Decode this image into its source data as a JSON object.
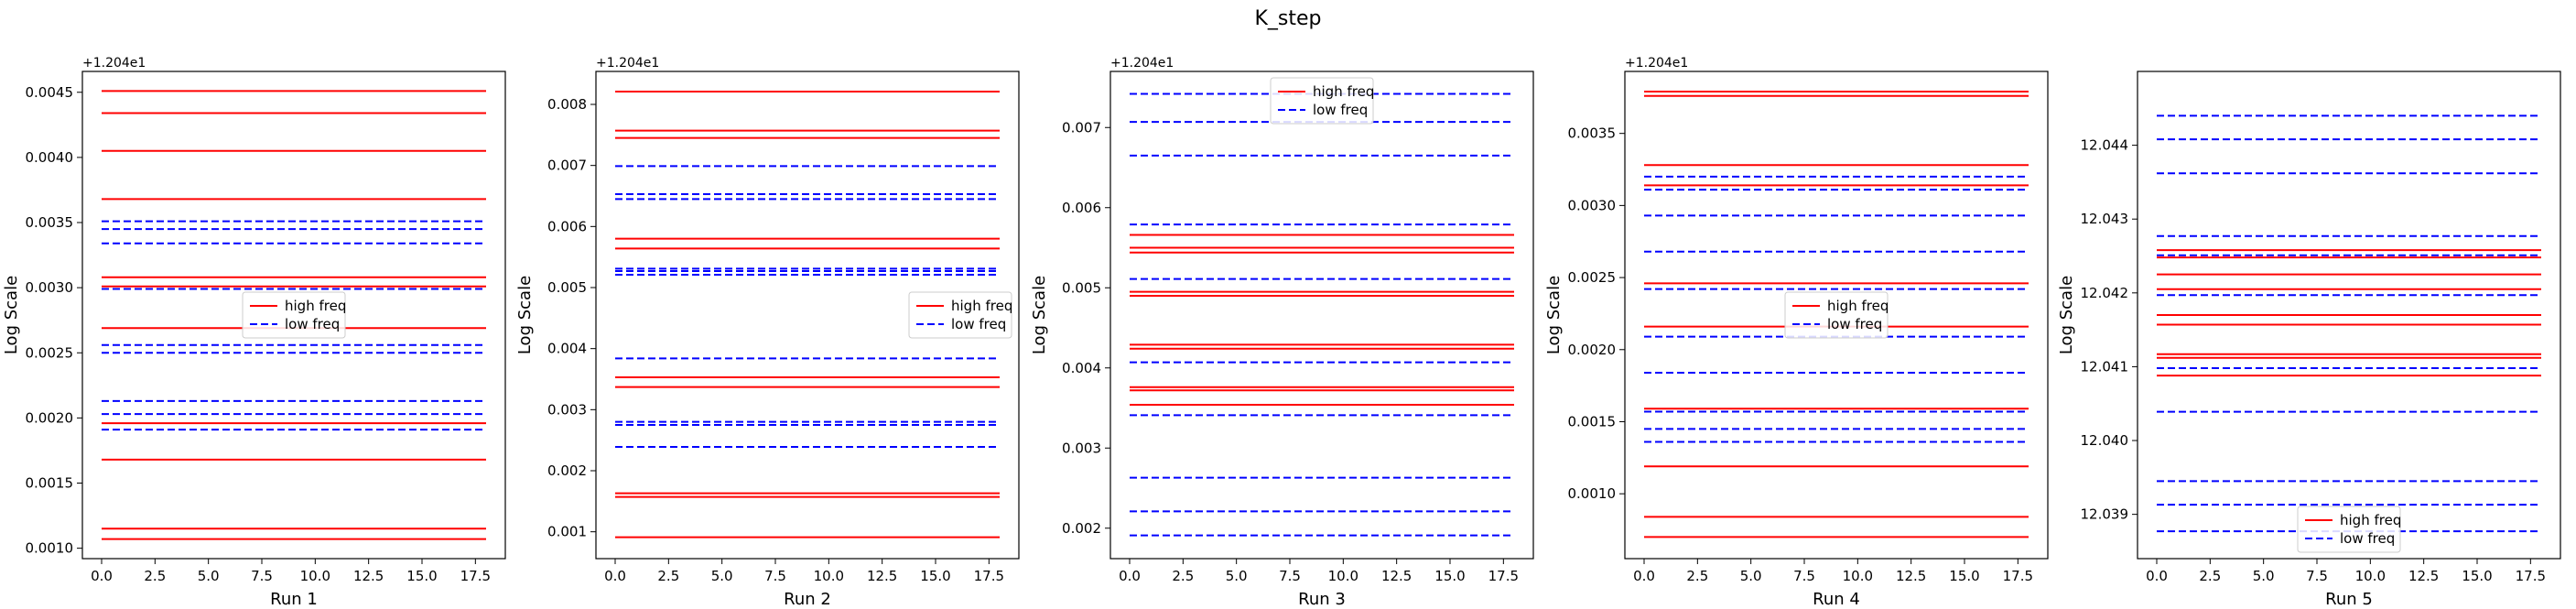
{
  "figure": {
    "title": "K_step"
  },
  "legend_labels": {
    "high": "high freq",
    "low": "low freq"
  },
  "colors": {
    "high": "#ff0000",
    "low": "#0000ff"
  },
  "chart_data": [
    {
      "type": "line",
      "xlabel": "Run 1",
      "ylabel": "Log Scale",
      "offset_text": "+1.204e1",
      "x_range": [
        0,
        18
      ],
      "xlim": [
        -0.9,
        18.9
      ],
      "xticks": [
        "0.0",
        "2.5",
        "5.0",
        "7.5",
        "10.0",
        "12.5",
        "15.0",
        "17.5"
      ],
      "ylim": [
        0.00092,
        0.00466
      ],
      "yticks": [
        "0.0010",
        "0.0015",
        "0.0020",
        "0.0025",
        "0.0030",
        "0.0035",
        "0.0040",
        "0.0045"
      ],
      "ytick_values": [
        0.001,
        0.0015,
        0.002,
        0.0025,
        0.003,
        0.0035,
        0.004,
        0.0045
      ],
      "legend_loc": "center",
      "series": [
        {
          "name": "high freq",
          "style": "solid",
          "values": [
            0.00451,
            0.00434,
            0.00405,
            0.00368,
            0.00308,
            0.00301,
            0.00269,
            0.00196,
            0.00168,
            0.00115,
            0.00107
          ]
        },
        {
          "name": "low freq",
          "style": "dashed",
          "values": [
            0.00351,
            0.00345,
            0.00334,
            0.00299,
            0.00256,
            0.0025,
            0.00213,
            0.00203,
            0.00191
          ]
        }
      ]
    },
    {
      "type": "line",
      "xlabel": "Run 2",
      "ylabel": "Log Scale",
      "offset_text": "+1.204e1",
      "x_range": [
        0,
        18
      ],
      "xlim": [
        -0.9,
        18.9
      ],
      "xticks": [
        "0.0",
        "2.5",
        "5.0",
        "7.5",
        "10.0",
        "12.5",
        "15.0",
        "17.5"
      ],
      "ylim": [
        0.00056,
        0.00854
      ],
      "yticks": [
        "0.001",
        "0.002",
        "0.003",
        "0.004",
        "0.005",
        "0.006",
        "0.007",
        "0.008"
      ],
      "ytick_values": [
        0.001,
        0.002,
        0.003,
        0.004,
        0.005,
        0.006,
        0.007,
        0.008
      ],
      "legend_loc": "center right",
      "series": [
        {
          "name": "high freq",
          "style": "solid",
          "values": [
            0.00821,
            0.00757,
            0.00745,
            0.0058,
            0.00564,
            0.00353,
            0.00337,
            0.00163,
            0.00157,
            0.00091
          ]
        },
        {
          "name": "low freq",
          "style": "dashed",
          "values": [
            0.00699,
            0.00653,
            0.00645,
            0.00531,
            0.00527,
            0.00521,
            0.00384,
            0.0028,
            0.00275,
            0.00239
          ]
        }
      ]
    },
    {
      "type": "line",
      "xlabel": "Run 3",
      "ylabel": "Log Scale",
      "offset_text": "+1.204e1",
      "x_range": [
        0,
        18
      ],
      "xlim": [
        -0.9,
        18.9
      ],
      "xticks": [
        "0.0",
        "2.5",
        "5.0",
        "7.5",
        "10.0",
        "12.5",
        "15.0",
        "17.5"
      ],
      "ylim": [
        0.00162,
        0.0077
      ],
      "yticks": [
        "0.002",
        "0.003",
        "0.004",
        "0.005",
        "0.006",
        "0.007"
      ],
      "ytick_values": [
        0.002,
        0.003,
        0.004,
        0.005,
        0.006,
        0.007
      ],
      "legend_loc": "upper center",
      "series": [
        {
          "name": "high freq",
          "style": "solid",
          "values": [
            0.00566,
            0.0055,
            0.00544,
            0.00495,
            0.0049,
            0.00429,
            0.00424,
            0.00376,
            0.00372,
            0.00354
          ]
        },
        {
          "name": "low freq",
          "style": "dashed",
          "values": [
            0.00742,
            0.00707,
            0.00665,
            0.00579,
            0.00511,
            0.00407,
            0.00341,
            0.00263,
            0.00221,
            0.00191
          ]
        }
      ]
    },
    {
      "type": "line",
      "xlabel": "Run 4",
      "ylabel": "Log Scale",
      "offset_text": "+1.204e1",
      "x_range": [
        0,
        18
      ],
      "xlim": [
        -0.9,
        18.9
      ],
      "xticks": [
        "0.0",
        "2.5",
        "5.0",
        "7.5",
        "10.0",
        "12.5",
        "15.0",
        "17.5"
      ],
      "ylim": [
        0.00055,
        0.00393
      ],
      "yticks": [
        "0.0010",
        "0.0015",
        "0.0020",
        "0.0025",
        "0.0030",
        "0.0035"
      ],
      "ytick_values": [
        0.001,
        0.0015,
        0.002,
        0.0025,
        0.003,
        0.0035
      ],
      "legend_loc": "center",
      "series": [
        {
          "name": "high freq",
          "style": "solid",
          "values": [
            0.00379,
            0.00376,
            0.00328,
            0.00314,
            0.00246,
            0.00216,
            0.00159,
            0.00119,
            0.00084,
            0.0007
          ]
        },
        {
          "name": "low freq",
          "style": "dashed",
          "values": [
            0.0032,
            0.00311,
            0.00293,
            0.00268,
            0.00242,
            0.00209,
            0.00184,
            0.00157,
            0.00145,
            0.00136
          ]
        }
      ]
    },
    {
      "type": "line",
      "xlabel": "Run 5",
      "ylabel": "Log Scale",
      "offset_text": "",
      "x_range": [
        0,
        18
      ],
      "xlim": [
        -0.9,
        18.9
      ],
      "xticks": [
        "0.0",
        "2.5",
        "5.0",
        "7.5",
        "10.0",
        "12.5",
        "15.0",
        "17.5"
      ],
      "ylim": [
        12.0384,
        12.045
      ],
      "yticks": [
        "12.039",
        "12.040",
        "12.041",
        "12.042",
        "12.043",
        "12.044"
      ],
      "ytick_values": [
        12.039,
        12.04,
        12.041,
        12.042,
        12.043,
        12.044
      ],
      "legend_loc": "lower center",
      "series": [
        {
          "name": "high freq",
          "style": "solid",
          "values": [
            12.04258,
            12.04248,
            12.04225,
            12.04205,
            12.0417,
            12.04157,
            12.04117,
            12.04112,
            12.04088
          ]
        },
        {
          "name": "low freq",
          "style": "dashed",
          "values": [
            12.0444,
            12.04408,
            12.04362,
            12.04277,
            12.04251,
            12.04197,
            12.04098,
            12.04039,
            12.03945,
            12.03913,
            12.03877
          ]
        }
      ]
    }
  ]
}
